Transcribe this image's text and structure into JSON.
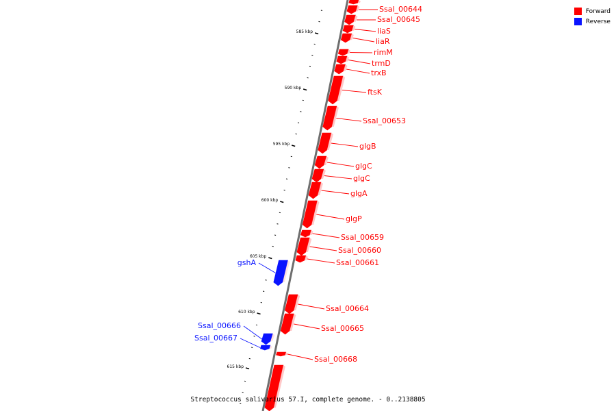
{
  "colors": {
    "forward": "#ff0000",
    "reverse": "#0a14ff",
    "backbone": "#6e6e6e"
  },
  "legend": [
    {
      "label": "Forward",
      "color": "#ff0000"
    },
    {
      "label": "Reverse",
      "color": "#0a14ff"
    }
  ],
  "caption": "Streptococcus salivarius 57.I, complete genome. - 0..2138805",
  "ticks": [
    "585 kbp",
    "590 kbp",
    "595 kbp",
    "600 kbp",
    "605 kbp",
    "610 kbp",
    "615 kbp"
  ],
  "genes": [
    {
      "label": "",
      "strand": "forward"
    },
    {
      "label": "Ssal_00644",
      "strand": "forward"
    },
    {
      "label": "Ssal_00645",
      "strand": "forward"
    },
    {
      "label": "liaS",
      "strand": "forward"
    },
    {
      "label": "liaR",
      "strand": "forward"
    },
    {
      "label": "rimM",
      "strand": "forward"
    },
    {
      "label": "trmD",
      "strand": "forward"
    },
    {
      "label": "trxB",
      "strand": "forward"
    },
    {
      "label": "ftsK",
      "strand": "forward"
    },
    {
      "label": "Ssal_00653",
      "strand": "forward"
    },
    {
      "label": "glgB",
      "strand": "forward"
    },
    {
      "label": "glgC",
      "strand": "forward"
    },
    {
      "label": "glgC",
      "strand": "forward"
    },
    {
      "label": "glgA",
      "strand": "forward"
    },
    {
      "label": "glgP",
      "strand": "forward"
    },
    {
      "label": "Ssal_00659",
      "strand": "forward"
    },
    {
      "label": "Ssal_00660",
      "strand": "forward"
    },
    {
      "label": "Ssal_00661",
      "strand": "forward"
    },
    {
      "label": "gshA",
      "strand": "reverse"
    },
    {
      "label": "Ssal_00664",
      "strand": "forward"
    },
    {
      "label": "Ssal_00665",
      "strand": "forward"
    },
    {
      "label": "Ssal_00666",
      "strand": "reverse"
    },
    {
      "label": "Ssal_00667",
      "strand": "reverse"
    },
    {
      "label": "Ssal_00668",
      "strand": "forward"
    },
    {
      "label": "",
      "strand": "forward"
    }
  ]
}
